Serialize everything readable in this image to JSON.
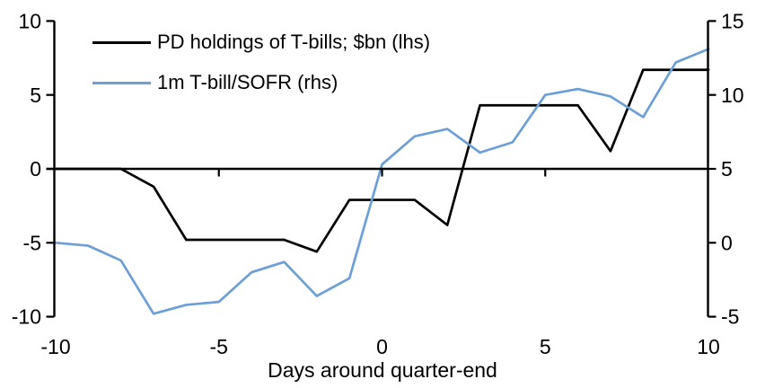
{
  "chart_data": {
    "type": "line",
    "title": "",
    "xlabel": "Days around quarter-end",
    "x": [
      -10,
      -9,
      -8,
      -7,
      -6,
      -5,
      -4,
      -3,
      -2,
      -1,
      0,
      1,
      2,
      3,
      4,
      5,
      6,
      7,
      8,
      9,
      10
    ],
    "series": [
      {
        "name": "PD holdings of T-bills; $bn (lhs)",
        "axis": "lhs",
        "color": "#000000",
        "values": [
          0,
          0,
          0,
          -1.2,
          -4.8,
          -4.8,
          -4.8,
          -4.8,
          -5.6,
          -2.1,
          -2.1,
          -2.1,
          -3.8,
          4.3,
          4.3,
          4.3,
          4.3,
          1.2,
          6.7,
          6.7,
          6.7
        ]
      },
      {
        "name": "1m T-bill/SOFR (rhs)",
        "axis": "rhs",
        "color": "#6C9FD6",
        "values": [
          0.0,
          -0.2,
          -1.2,
          -4.8,
          -4.2,
          -4.0,
          -2.0,
          -1.3,
          -3.6,
          -2.4,
          5.3,
          7.2,
          7.7,
          6.1,
          6.8,
          10.0,
          10.4,
          9.9,
          8.5,
          12.2,
          13.1
        ]
      }
    ],
    "lhs_axis": {
      "ticks": [
        10,
        5,
        0,
        -5,
        -10
      ],
      "range": [
        -10,
        10
      ]
    },
    "rhs_axis": {
      "ticks": [
        15,
        10,
        5,
        0,
        -5
      ],
      "range": [
        -5,
        15
      ]
    },
    "x_axis": {
      "tick_labels": [
        -10,
        -5,
        0,
        5,
        10
      ],
      "tick_marks": [
        -5,
        0,
        5
      ],
      "range": [
        -10,
        10
      ]
    },
    "grid": false,
    "legend_position": "top-left",
    "zero_line": true
  },
  "colors": {
    "axis": "#000000",
    "background": "#ffffff",
    "series_black": "#000000",
    "series_blue": "#6C9FD6"
  }
}
